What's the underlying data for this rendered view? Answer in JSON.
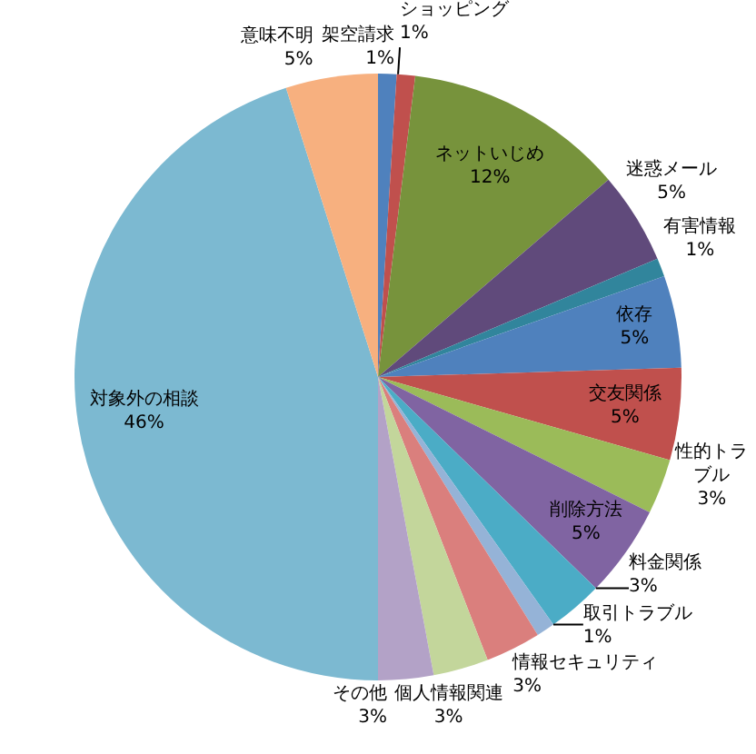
{
  "chart_data": {
    "type": "pie",
    "categories": [
      "架空請求",
      "ショッピング",
      "ネットいじめ",
      "迷惑メール",
      "有害情報",
      "依存",
      "交友関係",
      "性的トラブル",
      "削除方法",
      "料金関係",
      "取引トラブル",
      "情報セキュリティ",
      "個人情報関連",
      "その他",
      "対象外の相談",
      "意味不明"
    ],
    "values": [
      1,
      1,
      12,
      5,
      1,
      5,
      5,
      3,
      5,
      3,
      1,
      3,
      3,
      3,
      46,
      5
    ],
    "value_labels": [
      "1%",
      "1%",
      "12%",
      "5%",
      "1%",
      "5%",
      "5%",
      "3%",
      "5%",
      "3%",
      "1%",
      "3%",
      "3%",
      "3%",
      "46%",
      "5%"
    ],
    "colors": [
      "#4f81bd",
      "#c0504d",
      "#77933c",
      "#604a7b",
      "#31859c",
      "#4f81bd",
      "#c0504d",
      "#9bbb59",
      "#8064a2",
      "#4bacc6",
      "#95b3d7",
      "#da7f7d",
      "#c3d69b",
      "#b3a2c7",
      "#7cb9d1",
      "#f7b07f"
    ]
  }
}
